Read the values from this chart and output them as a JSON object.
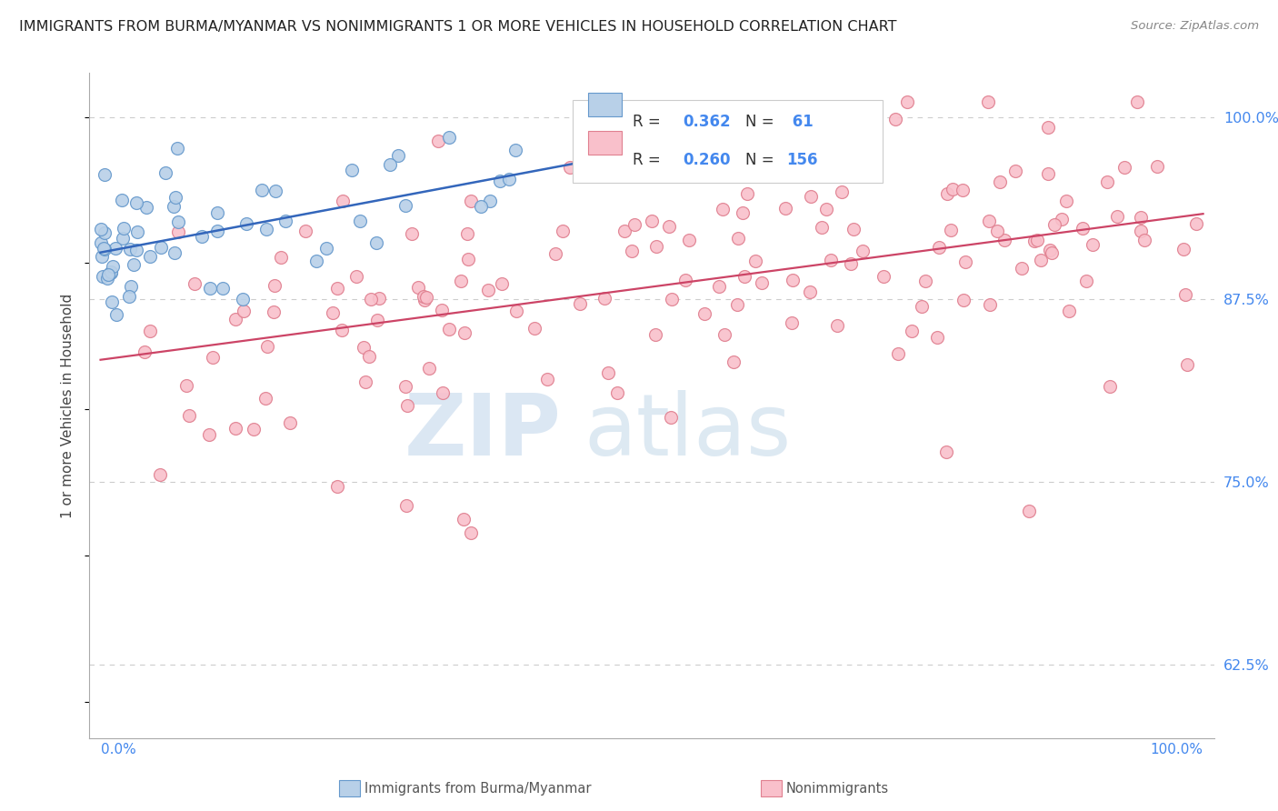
{
  "title": "IMMIGRANTS FROM BURMA/MYANMAR VS NONIMMIGRANTS 1 OR MORE VEHICLES IN HOUSEHOLD CORRELATION CHART",
  "source": "Source: ZipAtlas.com",
  "ylabel": "1 or more Vehicles in Household",
  "ytick_labels": [
    "62.5%",
    "75.0%",
    "87.5%",
    "100.0%"
  ],
  "ytick_values": [
    0.625,
    0.75,
    0.875,
    1.0
  ],
  "xlim": [
    0.0,
    1.0
  ],
  "ylim": [
    0.575,
    1.03
  ],
  "legend_r1": "R = 0.362",
  "legend_n1": "N =  61",
  "legend_r2": "R = 0.260",
  "legend_n2": "N = 156",
  "blue_fill": "#b8d0e8",
  "blue_edge": "#6699cc",
  "pink_fill": "#f9c0cb",
  "pink_edge": "#e08090",
  "blue_line_color": "#3366bb",
  "pink_line_color": "#cc4466",
  "title_color": "#222222",
  "source_color": "#888888",
  "ylabel_color": "#444444",
  "ytick_color": "#4488ee",
  "grid_color": "#cccccc",
  "watermark_zip_color": "#b8d0e8",
  "watermark_atlas_color": "#aac8e0"
}
